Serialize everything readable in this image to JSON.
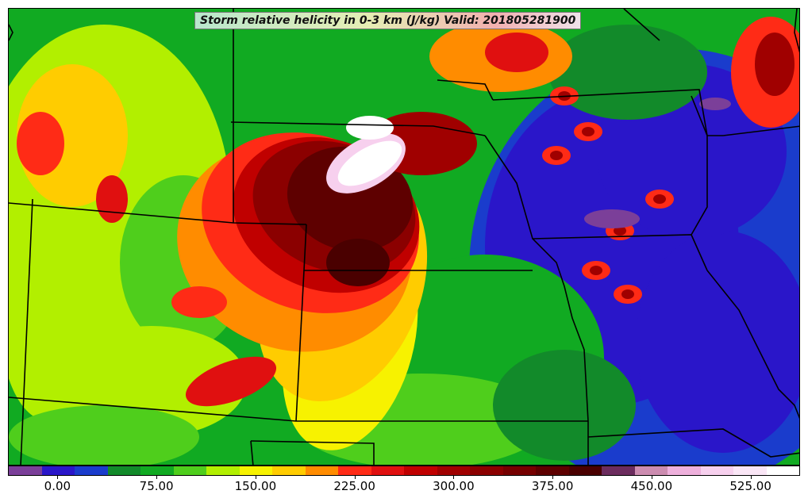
{
  "map": {
    "title": "Storm relative helicity in 0-3 km (J/kg) Valid: 201805281900",
    "field": "storm relative helicity 0-3 km",
    "units": "J/kg",
    "valid_time": "201805281900",
    "colorbar": {
      "min": -37.5,
      "max": 562.5,
      "step": 25,
      "tick_labels": [
        "0.00",
        "75.00",
        "150.00",
        "225.00",
        "300.00",
        "375.00",
        "450.00",
        "525.00"
      ],
      "tick_values": [
        0,
        75,
        150,
        225,
        300,
        375,
        450,
        525
      ],
      "colors": [
        "#7b3f99",
        "#2a16c9",
        "#1a3ccc",
        "#128a2a",
        "#11aa22",
        "#4fce1c",
        "#b2ef00",
        "#f7f200",
        "#ffcc00",
        "#ff8c00",
        "#ff2b16",
        "#e01010",
        "#c00000",
        "#a00000",
        "#8b0000",
        "#760000",
        "#5e0000",
        "#4a0000",
        "#6c2c5e",
        "#cc8cb0",
        "#eeb0dc",
        "#f7d0ee",
        "#fae6f6",
        "#ffffff"
      ]
    },
    "background_color": "#11aa22",
    "border_color": "#000000"
  }
}
